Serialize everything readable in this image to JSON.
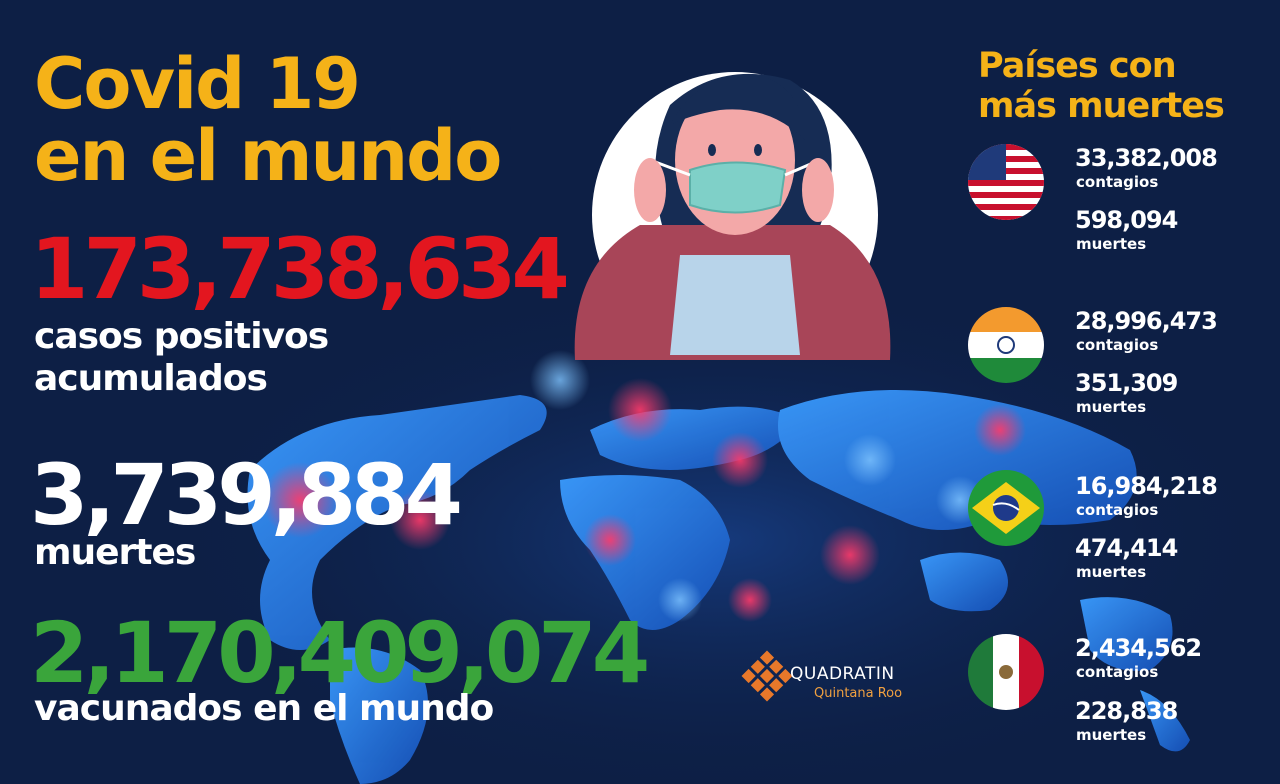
{
  "headline": {
    "line1": "Covid 19",
    "line2": "en el mundo"
  },
  "stats": {
    "cases": {
      "value": "173,738,634",
      "label_line1": "casos positivos",
      "label_line2": "acumulados"
    },
    "deaths": {
      "value": "3,739,884",
      "label": "muertes"
    },
    "vaccinated": {
      "value": "2,170,409,074",
      "label": "vacunados en el mundo"
    }
  },
  "sidebar": {
    "title_line1": "Países  con",
    "title_line2": "más muertes",
    "countries": [
      {
        "flag": "usa-flag-icon",
        "cases": "33,382,008",
        "cases_label": "contagios",
        "deaths": "598,094",
        "deaths_label": "muertes"
      },
      {
        "flag": "india-flag-icon",
        "cases": "28,996,473",
        "cases_label": "contagios",
        "deaths": "351,309",
        "deaths_label": "muertes"
      },
      {
        "flag": "brazil-flag-icon",
        "cases": "16,984,218",
        "cases_label": "contagios",
        "deaths": "474,414",
        "deaths_label": "muertes"
      },
      {
        "flag": "mexico-flag-icon",
        "cases": "2,434,562",
        "cases_label": "contagios",
        "deaths": "228,838",
        "deaths_label": "muertes"
      }
    ]
  },
  "logo": {
    "name": "QUADRATIN",
    "subtitle": "Quintana Roo"
  },
  "colors": {
    "background": "#0d1f45",
    "title": "#f5b218",
    "cases": "#e3161f",
    "vaccinated": "#3aa53b",
    "map": "#1e6fd6",
    "logo_accent": "#e8782a"
  }
}
